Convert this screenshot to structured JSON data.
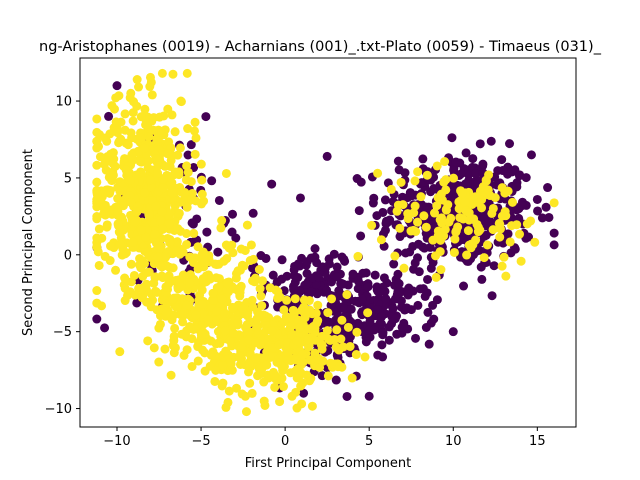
{
  "chart_data": {
    "type": "scatter",
    "title": "ng-Aristophanes (0019) - Acharnians (001)_.txt-Plato (0059) - Timaeus (031)_",
    "xlabel": "First Principal Component",
    "ylabel": "Second Principal Component",
    "xlim": [
      -12.2,
      17.3
    ],
    "ylim": [
      -11.2,
      12.8
    ],
    "xticks": [
      -10,
      -5,
      0,
      5,
      10,
      15
    ],
    "yticks": [
      -10,
      -5,
      0,
      5,
      10
    ],
    "grid": false,
    "legend": "none",
    "colors": {
      "class_0": "#440154",
      "class_1": "#fde725"
    },
    "series": [
      {
        "color": "#440154",
        "clusters": [
          {
            "cx": 10.2,
            "cy": 2.8,
            "sx": 2.3,
            "sy": 1.9,
            "n": 420
          },
          {
            "cx": 5.5,
            "cy": -3.5,
            "sx": 1.7,
            "sy": 1.1,
            "n": 160
          },
          {
            "cx": 1.5,
            "cy": -2.2,
            "sx": 1.4,
            "sy": 1.3,
            "n": 120
          },
          {
            "cx": -6.5,
            "cy": 2.0,
            "sx": 2.4,
            "sy": 3.2,
            "n": 70
          },
          {
            "cx": 2.2,
            "cy": -5.8,
            "sx": 1.6,
            "sy": 1.3,
            "n": 80
          }
        ],
        "points": [
          [
            5.0,
            -9.2
          ],
          [
            -10.5,
            9.0
          ],
          [
            2.5,
            6.4
          ],
          [
            -1.9,
            2.7
          ],
          [
            13.9,
            3.0
          ],
          [
            15.0,
            3.6
          ],
          [
            15.3,
            2.4
          ],
          [
            11.7,
            -1.6
          ],
          [
            8.8,
            -0.5
          ],
          [
            10.0,
            -5.0
          ],
          [
            -10.0,
            11.0
          ],
          [
            -0.8,
            4.6
          ]
        ]
      },
      {
        "color": "#fde725",
        "clusters": [
          {
            "cx": -8.3,
            "cy": 4.0,
            "sx": 1.5,
            "sy": 3.0,
            "n": 550
          },
          {
            "cx": -4.8,
            "cy": -2.8,
            "sx": 1.7,
            "sy": 1.9,
            "n": 300
          },
          {
            "cx": -1.5,
            "cy": -6.0,
            "sx": 1.7,
            "sy": 1.5,
            "n": 260
          },
          {
            "cx": 1.5,
            "cy": -5.5,
            "sx": 1.4,
            "sy": 1.5,
            "n": 110
          },
          {
            "cx": 10.5,
            "cy": 2.5,
            "sx": 2.3,
            "sy": 1.5,
            "n": 130
          }
        ],
        "points": [
          [
            -7.3,
            11.8
          ],
          [
            -8.8,
            11.4
          ],
          [
            -7.9,
            10.4
          ],
          [
            -6.2,
            10.0
          ],
          [
            -10.3,
            9.7
          ],
          [
            -5.3,
            7.6
          ],
          [
            -10.6,
            1.8
          ],
          [
            -2.3,
            -10.2
          ],
          [
            -1.2,
            -9.8
          ],
          [
            -3.4,
            -9.6
          ],
          [
            5.5,
            5.3
          ],
          [
            12.1,
            5.2
          ],
          [
            14.6,
            2.2
          ]
        ]
      }
    ]
  }
}
